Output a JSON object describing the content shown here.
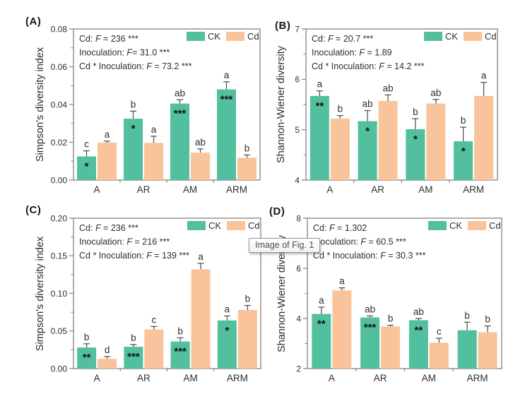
{
  "figure": {
    "colors": {
      "ck": "#52BF9E",
      "cd": "#F9C49B",
      "axis": "#828282",
      "text": "#2E2E2E",
      "error": "#4A4A4A",
      "stars": "#111111"
    }
  },
  "tooltip": {
    "text": "Image of Fig. 1"
  },
  "chart_data": [
    {
      "panel": "(A)",
      "type": "bar",
      "ylabel": "Simpson's diversity index",
      "ylim": [
        0,
        0.08
      ],
      "yticks": [
        0,
        0.02,
        0.04,
        0.06,
        0.08
      ],
      "ytick_labels": [
        "0.00",
        "0.02",
        "0.04",
        "0.06",
        "0.08"
      ],
      "categories": [
        "A",
        "AR",
        "AM",
        "ARM"
      ],
      "legend_position": "top-right-inside",
      "grid": false,
      "stats": [
        {
          "prefix": "Cd: ",
          "f": "F",
          "rest": " = 236 ***"
        },
        {
          "prefix": "Inoculation: ",
          "f": "F",
          "rest": "= 31.0 ***"
        },
        {
          "prefix": "Cd * Inoculation: ",
          "f": "F",
          "rest": " = 73.2 ***"
        }
      ],
      "series": [
        {
          "name": "CK",
          "color_key": "ck",
          "values": [
            0.0125,
            0.0325,
            0.0405,
            0.048
          ],
          "errors": [
            0.003,
            0.004,
            0.002,
            0.004
          ],
          "letters": [
            "c",
            "b",
            "ab",
            "a"
          ],
          "stars": [
            "*",
            "*",
            "***",
            "***"
          ]
        },
        {
          "name": "Cd",
          "color_key": "cd",
          "values": [
            0.0198,
            0.0197,
            0.0145,
            0.0118
          ],
          "errors": [
            0.0008,
            0.0035,
            0.002,
            0.0015
          ],
          "letters": [
            "a",
            "a",
            "ab",
            "b"
          ],
          "stars": [
            "",
            "",
            "",
            ""
          ]
        }
      ]
    },
    {
      "panel": "(B)",
      "type": "bar",
      "ylabel": "Shannon-Wiener diversity",
      "ylim": [
        4,
        7
      ],
      "yticks": [
        4,
        5,
        6,
        7
      ],
      "ytick_labels": [
        "4",
        "5",
        "6",
        "7"
      ],
      "categories": [
        "A",
        "AR",
        "AM",
        "ARM"
      ],
      "legend_position": "top-right-inside",
      "grid": false,
      "stats": [
        {
          "prefix": "Cd: ",
          "f": "F",
          "rest": " = 20.7 ***"
        },
        {
          "prefix": "Inoculation: ",
          "f": "F",
          "rest": " = 1.89"
        },
        {
          "prefix": "Cd * Inoculation: ",
          "f": "F",
          "rest": " = 14.2 ***"
        }
      ],
      "series": [
        {
          "name": "CK",
          "color_key": "ck",
          "values": [
            5.67,
            5.17,
            5.01,
            4.77
          ],
          "errors": [
            0.1,
            0.21,
            0.21,
            0.28
          ],
          "letters": [
            "a",
            "ab",
            "b",
            "b"
          ],
          "stars": [
            "**",
            "*",
            "*",
            "*"
          ]
        },
        {
          "name": "Cd",
          "color_key": "cd",
          "values": [
            5.22,
            5.57,
            5.52,
            5.67
          ],
          "errors": [
            0.06,
            0.12,
            0.08,
            0.27
          ],
          "letters": [
            "b",
            "ab",
            "ab",
            "a"
          ],
          "stars": [
            "",
            "",
            "",
            ""
          ]
        }
      ]
    },
    {
      "panel": "(C)",
      "type": "bar",
      "ylabel": "Simpson's diversity index",
      "ylim": [
        0,
        0.2
      ],
      "yticks": [
        0,
        0.05,
        0.1,
        0.15,
        0.2
      ],
      "ytick_labels": [
        "0.00",
        "0.05",
        "0.10",
        "0.15",
        "0.20"
      ],
      "categories": [
        "A",
        "AR",
        "AM",
        "ARM"
      ],
      "legend_position": "top-right-inside",
      "grid": false,
      "stats": [
        {
          "prefix": "Cd: ",
          "f": "F",
          "rest": " = 236 ***"
        },
        {
          "prefix": "Inoculation: ",
          "f": "F",
          "rest": " = 216 ***"
        },
        {
          "prefix": "Cd * Inoculation: ",
          "f": "F",
          "rest": " = 139 ***"
        }
      ],
      "series": [
        {
          "name": "CK",
          "color_key": "ck",
          "values": [
            0.028,
            0.029,
            0.036,
            0.064
          ],
          "errors": [
            0.005,
            0.003,
            0.005,
            0.006
          ],
          "letters": [
            "b",
            "b",
            "b",
            "a"
          ],
          "stars": [
            "**",
            "***",
            "***",
            "*"
          ]
        },
        {
          "name": "Cd",
          "color_key": "cd",
          "values": [
            0.013,
            0.052,
            0.132,
            0.078
          ],
          "errors": [
            0.003,
            0.004,
            0.008,
            0.006
          ],
          "letters": [
            "d",
            "c",
            "a",
            "b"
          ],
          "stars": [
            "",
            "",
            "",
            ""
          ]
        }
      ]
    },
    {
      "panel": "(D)",
      "type": "bar",
      "ylabel": "Shannon-Wiener diversity",
      "ylim": [
        2,
        8
      ],
      "yticks": [
        2,
        4,
        6,
        8
      ],
      "ytick_labels": [
        "2",
        "4",
        "6",
        "8"
      ],
      "categories": [
        "A",
        "AR",
        "AM",
        "ARM"
      ],
      "legend_position": "top-right-inside",
      "grid": false,
      "stats": [
        {
          "prefix": "Cd: ",
          "f": "F",
          "rest": " = 1.302"
        },
        {
          "prefix": "Inoculation: ",
          "f": "F",
          "rest": " = 60.5 ***"
        },
        {
          "prefix": "Cd * Inoculation: ",
          "f": "F",
          "rest": " = 30.3 ***"
        }
      ],
      "series": [
        {
          "name": "CK",
          "color_key": "ck",
          "values": [
            4.18,
            4.04,
            3.93,
            3.53
          ],
          "errors": [
            0.27,
            0.06,
            0.07,
            0.32
          ],
          "letters": [
            "a",
            "ab",
            "ab",
            "b"
          ],
          "stars": [
            "**",
            "***",
            "**",
            ""
          ]
        },
        {
          "name": "Cd",
          "color_key": "cd",
          "values": [
            5.12,
            3.68,
            3.03,
            3.45
          ],
          "errors": [
            0.1,
            0.05,
            0.18,
            0.25
          ],
          "letters": [
            "a",
            "b",
            "c",
            "b"
          ],
          "stars": [
            "",
            "",
            "",
            ""
          ]
        }
      ]
    }
  ]
}
